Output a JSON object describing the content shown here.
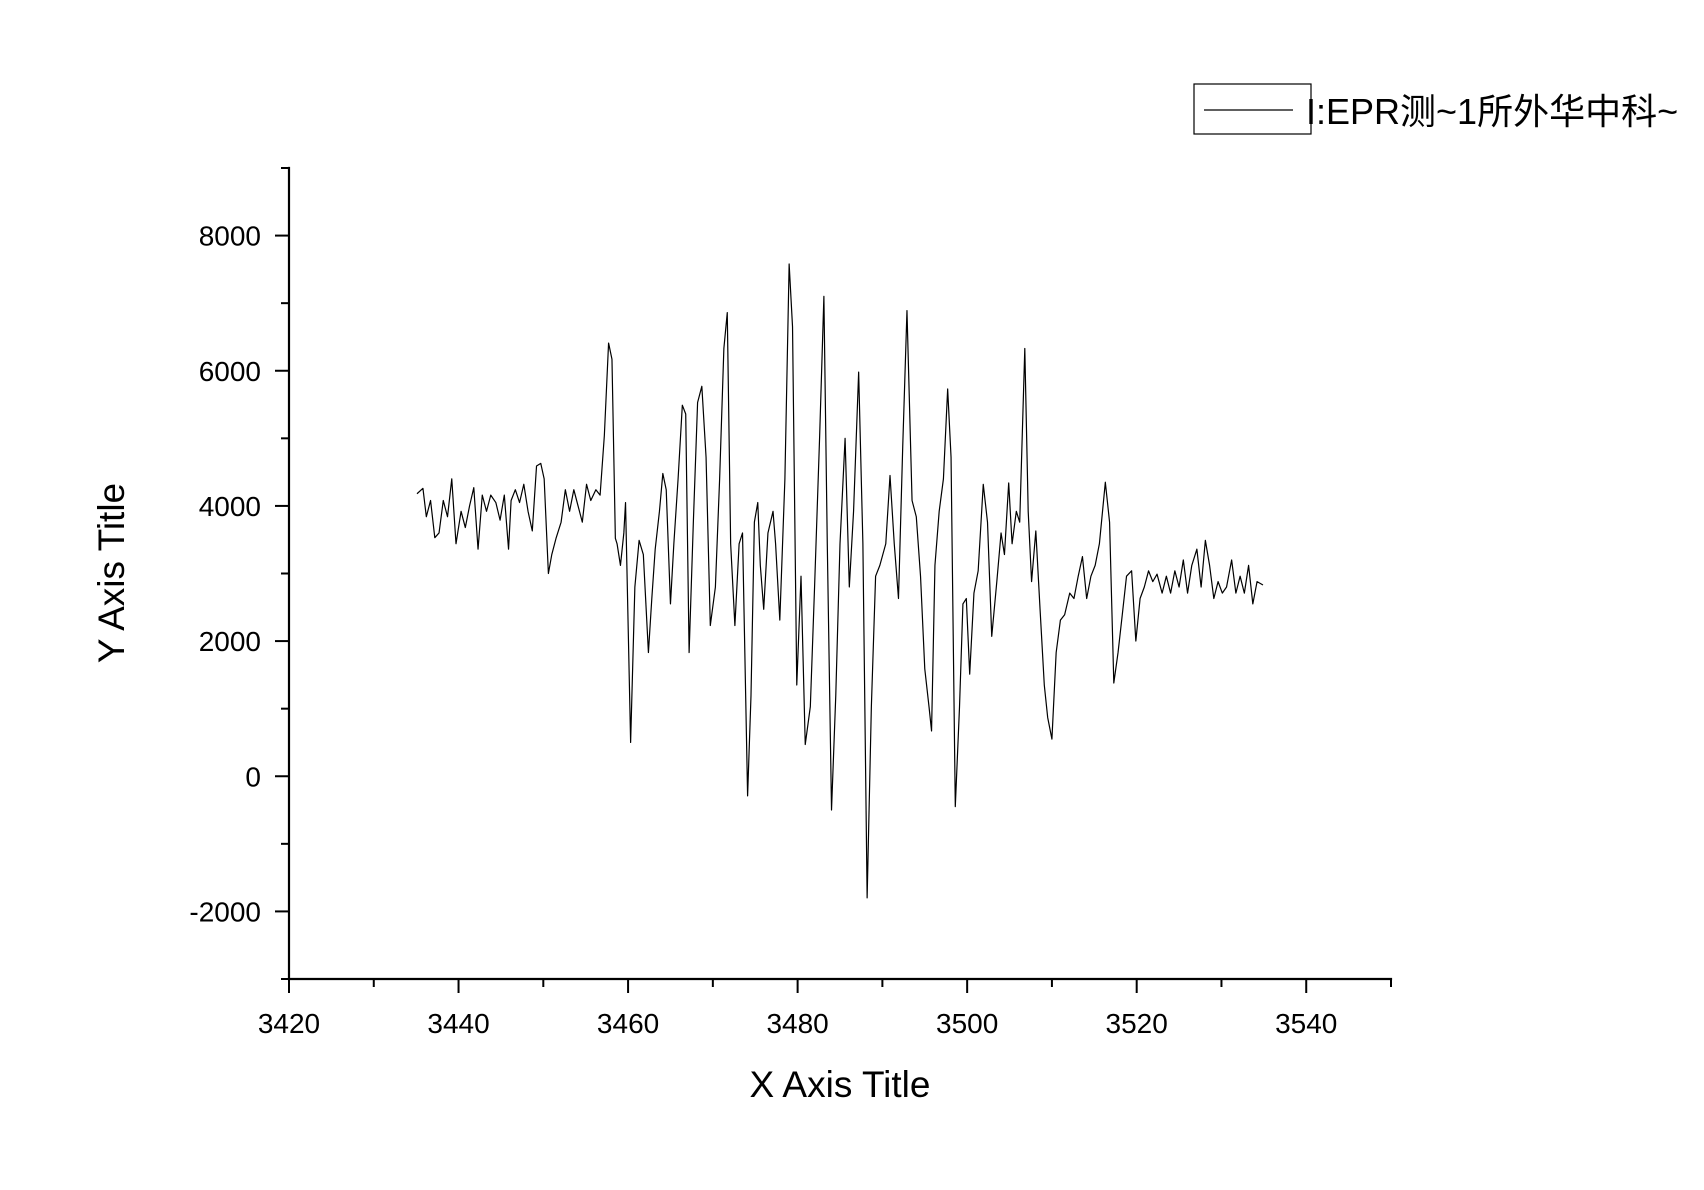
{
  "chart_data": {
    "type": "line",
    "title": "",
    "xlabel": "X Axis Title",
    "ylabel": "Y Axis Title",
    "xlim": [
      3420,
      3550
    ],
    "ylim": [
      -3000,
      9000
    ],
    "xticks": [
      3420,
      3440,
      3460,
      3480,
      3500,
      3520,
      3540
    ],
    "xtick_labels": [
      "3420",
      "3440",
      "3460",
      "3480",
      "3500",
      "3520",
      "3540"
    ],
    "x_minor_step": 10,
    "yticks": [
      -2000,
      0,
      2000,
      4000,
      6000,
      8000
    ],
    "ytick_labels": [
      "-2000",
      "0",
      "2000",
      "4000",
      "6000",
      "8000"
    ],
    "y_minor_step": 1000,
    "grid": false,
    "legend": {
      "position": "top-right"
    },
    "series": [
      {
        "name": "I:EPR测~1所外华中科~",
        "color": "#000000",
        "points": [
          [
            3435.1,
            4180
          ],
          [
            3435.8,
            4260
          ],
          [
            3436.2,
            3840
          ],
          [
            3436.7,
            4080
          ],
          [
            3437.2,
            3530
          ],
          [
            3437.7,
            3600
          ],
          [
            3438.2,
            4080
          ],
          [
            3438.7,
            3840
          ],
          [
            3439.2,
            4400
          ],
          [
            3439.7,
            3440
          ],
          [
            3440.3,
            3920
          ],
          [
            3440.8,
            3680
          ],
          [
            3441.3,
            4000
          ],
          [
            3441.8,
            4270
          ],
          [
            3442.3,
            3360
          ],
          [
            3442.8,
            4160
          ],
          [
            3443.3,
            3920
          ],
          [
            3443.8,
            4160
          ],
          [
            3444.4,
            4050
          ],
          [
            3444.9,
            3790
          ],
          [
            3445.4,
            4160
          ],
          [
            3445.9,
            3360
          ],
          [
            3446.2,
            4080
          ],
          [
            3446.7,
            4240
          ],
          [
            3447.2,
            4050
          ],
          [
            3447.7,
            4320
          ],
          [
            3448.2,
            3920
          ],
          [
            3448.7,
            3630
          ],
          [
            3449.2,
            4590
          ],
          [
            3449.7,
            4630
          ],
          [
            3450.1,
            4400
          ],
          [
            3450.6,
            3000
          ],
          [
            3451.0,
            3280
          ],
          [
            3451.5,
            3520
          ],
          [
            3452.1,
            3760
          ],
          [
            3452.6,
            4240
          ],
          [
            3453.1,
            3920
          ],
          [
            3453.6,
            4240
          ],
          [
            3454.1,
            4000
          ],
          [
            3454.6,
            3760
          ],
          [
            3455.1,
            4320
          ],
          [
            3455.6,
            4080
          ],
          [
            3456.2,
            4240
          ],
          [
            3456.7,
            4160
          ],
          [
            3457.2,
            5040
          ],
          [
            3457.7,
            6410
          ],
          [
            3458.1,
            6170
          ],
          [
            3458.5,
            3520
          ],
          [
            3458.7,
            3440
          ],
          [
            3459.1,
            3120
          ],
          [
            3459.5,
            3600
          ],
          [
            3459.7,
            4050
          ],
          [
            3460.3,
            500
          ],
          [
            3460.8,
            2800
          ],
          [
            3461.3,
            3490
          ],
          [
            3461.8,
            3280
          ],
          [
            3462.4,
            1830
          ],
          [
            3462.8,
            2630
          ],
          [
            3463.2,
            3360
          ],
          [
            3463.7,
            3920
          ],
          [
            3464.1,
            4480
          ],
          [
            3464.5,
            4240
          ],
          [
            3465.0,
            2550
          ],
          [
            3465.4,
            3440
          ],
          [
            3465.9,
            4400
          ],
          [
            3466.4,
            5490
          ],
          [
            3466.8,
            5360
          ],
          [
            3467.2,
            1830
          ],
          [
            3467.7,
            3760
          ],
          [
            3468.2,
            5530
          ],
          [
            3468.7,
            5770
          ],
          [
            3469.2,
            4720
          ],
          [
            3469.7,
            2230
          ],
          [
            3470.3,
            2800
          ],
          [
            3470.8,
            4400
          ],
          [
            3471.3,
            6330
          ],
          [
            3471.7,
            6860
          ],
          [
            3472.1,
            3440
          ],
          [
            3472.6,
            2230
          ],
          [
            3473.1,
            3440
          ],
          [
            3473.5,
            3600
          ],
          [
            3474.1,
            -290
          ],
          [
            3474.5,
            1190
          ],
          [
            3474.9,
            3760
          ],
          [
            3475.3,
            4050
          ],
          [
            3475.6,
            3120
          ],
          [
            3476.0,
            2470
          ],
          [
            3476.5,
            3600
          ],
          [
            3477.1,
            3920
          ],
          [
            3477.4,
            3440
          ],
          [
            3477.9,
            2310
          ],
          [
            3478.5,
            4400
          ],
          [
            3479.0,
            7580
          ],
          [
            3479.4,
            6650
          ],
          [
            3479.9,
            1350
          ],
          [
            3480.4,
            2960
          ],
          [
            3480.9,
            470
          ],
          [
            3481.5,
            1030
          ],
          [
            3482.0,
            2800
          ],
          [
            3482.6,
            5040
          ],
          [
            3483.1,
            7100
          ],
          [
            3483.5,
            3440
          ],
          [
            3484.0,
            -500
          ],
          [
            3484.5,
            1190
          ],
          [
            3485.0,
            3440
          ],
          [
            3485.6,
            5000
          ],
          [
            3486.1,
            2800
          ],
          [
            3486.6,
            3920
          ],
          [
            3487.2,
            5980
          ],
          [
            3487.7,
            3440
          ],
          [
            3488.2,
            -1800
          ],
          [
            3488.7,
            1030
          ],
          [
            3489.2,
            2960
          ],
          [
            3489.7,
            3120
          ],
          [
            3490.4,
            3440
          ],
          [
            3490.9,
            4450
          ],
          [
            3491.4,
            3440
          ],
          [
            3491.9,
            2630
          ],
          [
            3492.4,
            4880
          ],
          [
            3492.9,
            6890
          ],
          [
            3493.5,
            4080
          ],
          [
            3494.0,
            3840
          ],
          [
            3494.5,
            2960
          ],
          [
            3495.0,
            1590
          ],
          [
            3495.5,
            1030
          ],
          [
            3495.8,
            670
          ],
          [
            3496.2,
            3120
          ],
          [
            3496.7,
            3920
          ],
          [
            3497.2,
            4400
          ],
          [
            3497.7,
            5730
          ],
          [
            3498.1,
            4720
          ],
          [
            3498.6,
            -450
          ],
          [
            3499.1,
            1030
          ],
          [
            3499.5,
            2550
          ],
          [
            3499.9,
            2630
          ],
          [
            3500.3,
            1510
          ],
          [
            3500.8,
            2710
          ],
          [
            3501.3,
            3040
          ],
          [
            3501.9,
            4320
          ],
          [
            3502.4,
            3760
          ],
          [
            3502.9,
            2070
          ],
          [
            3503.5,
            2880
          ],
          [
            3504.0,
            3600
          ],
          [
            3504.4,
            3280
          ],
          [
            3504.9,
            4340
          ],
          [
            3505.3,
            3440
          ],
          [
            3505.8,
            3920
          ],
          [
            3506.2,
            3760
          ],
          [
            3506.8,
            6330
          ],
          [
            3507.2,
            3920
          ],
          [
            3507.6,
            2880
          ],
          [
            3508.1,
            3630
          ],
          [
            3508.6,
            2470
          ],
          [
            3509.1,
            1350
          ],
          [
            3509.5,
            870
          ],
          [
            3510.0,
            550
          ],
          [
            3510.5,
            1830
          ],
          [
            3511.0,
            2310
          ],
          [
            3511.5,
            2390
          ],
          [
            3512.1,
            2710
          ],
          [
            3512.6,
            2630
          ],
          [
            3513.1,
            2960
          ],
          [
            3513.6,
            3250
          ],
          [
            3514.1,
            2630
          ],
          [
            3514.6,
            2960
          ],
          [
            3515.1,
            3120
          ],
          [
            3515.6,
            3440
          ],
          [
            3516.3,
            4350
          ],
          [
            3516.8,
            3760
          ],
          [
            3517.3,
            1380
          ],
          [
            3517.8,
            1830
          ],
          [
            3518.3,
            2390
          ],
          [
            3518.8,
            2960
          ],
          [
            3519.4,
            3040
          ],
          [
            3519.9,
            2000
          ],
          [
            3520.4,
            2630
          ],
          [
            3520.9,
            2800
          ],
          [
            3521.4,
            3040
          ],
          [
            3521.9,
            2880
          ],
          [
            3522.4,
            2990
          ],
          [
            3523.0,
            2710
          ],
          [
            3523.5,
            2960
          ],
          [
            3524.0,
            2710
          ],
          [
            3524.5,
            3040
          ],
          [
            3525.0,
            2800
          ],
          [
            3525.5,
            3200
          ],
          [
            3526.0,
            2710
          ],
          [
            3526.5,
            3120
          ],
          [
            3527.1,
            3360
          ],
          [
            3527.6,
            2800
          ],
          [
            3528.1,
            3490
          ],
          [
            3528.6,
            3120
          ],
          [
            3529.1,
            2630
          ],
          [
            3529.6,
            2880
          ],
          [
            3530.1,
            2710
          ],
          [
            3530.6,
            2800
          ],
          [
            3531.2,
            3200
          ],
          [
            3531.7,
            2710
          ],
          [
            3532.2,
            2960
          ],
          [
            3532.7,
            2710
          ],
          [
            3533.2,
            3120
          ],
          [
            3533.7,
            2550
          ],
          [
            3534.2,
            2880
          ],
          [
            3534.9,
            2830
          ]
        ]
      }
    ]
  }
}
